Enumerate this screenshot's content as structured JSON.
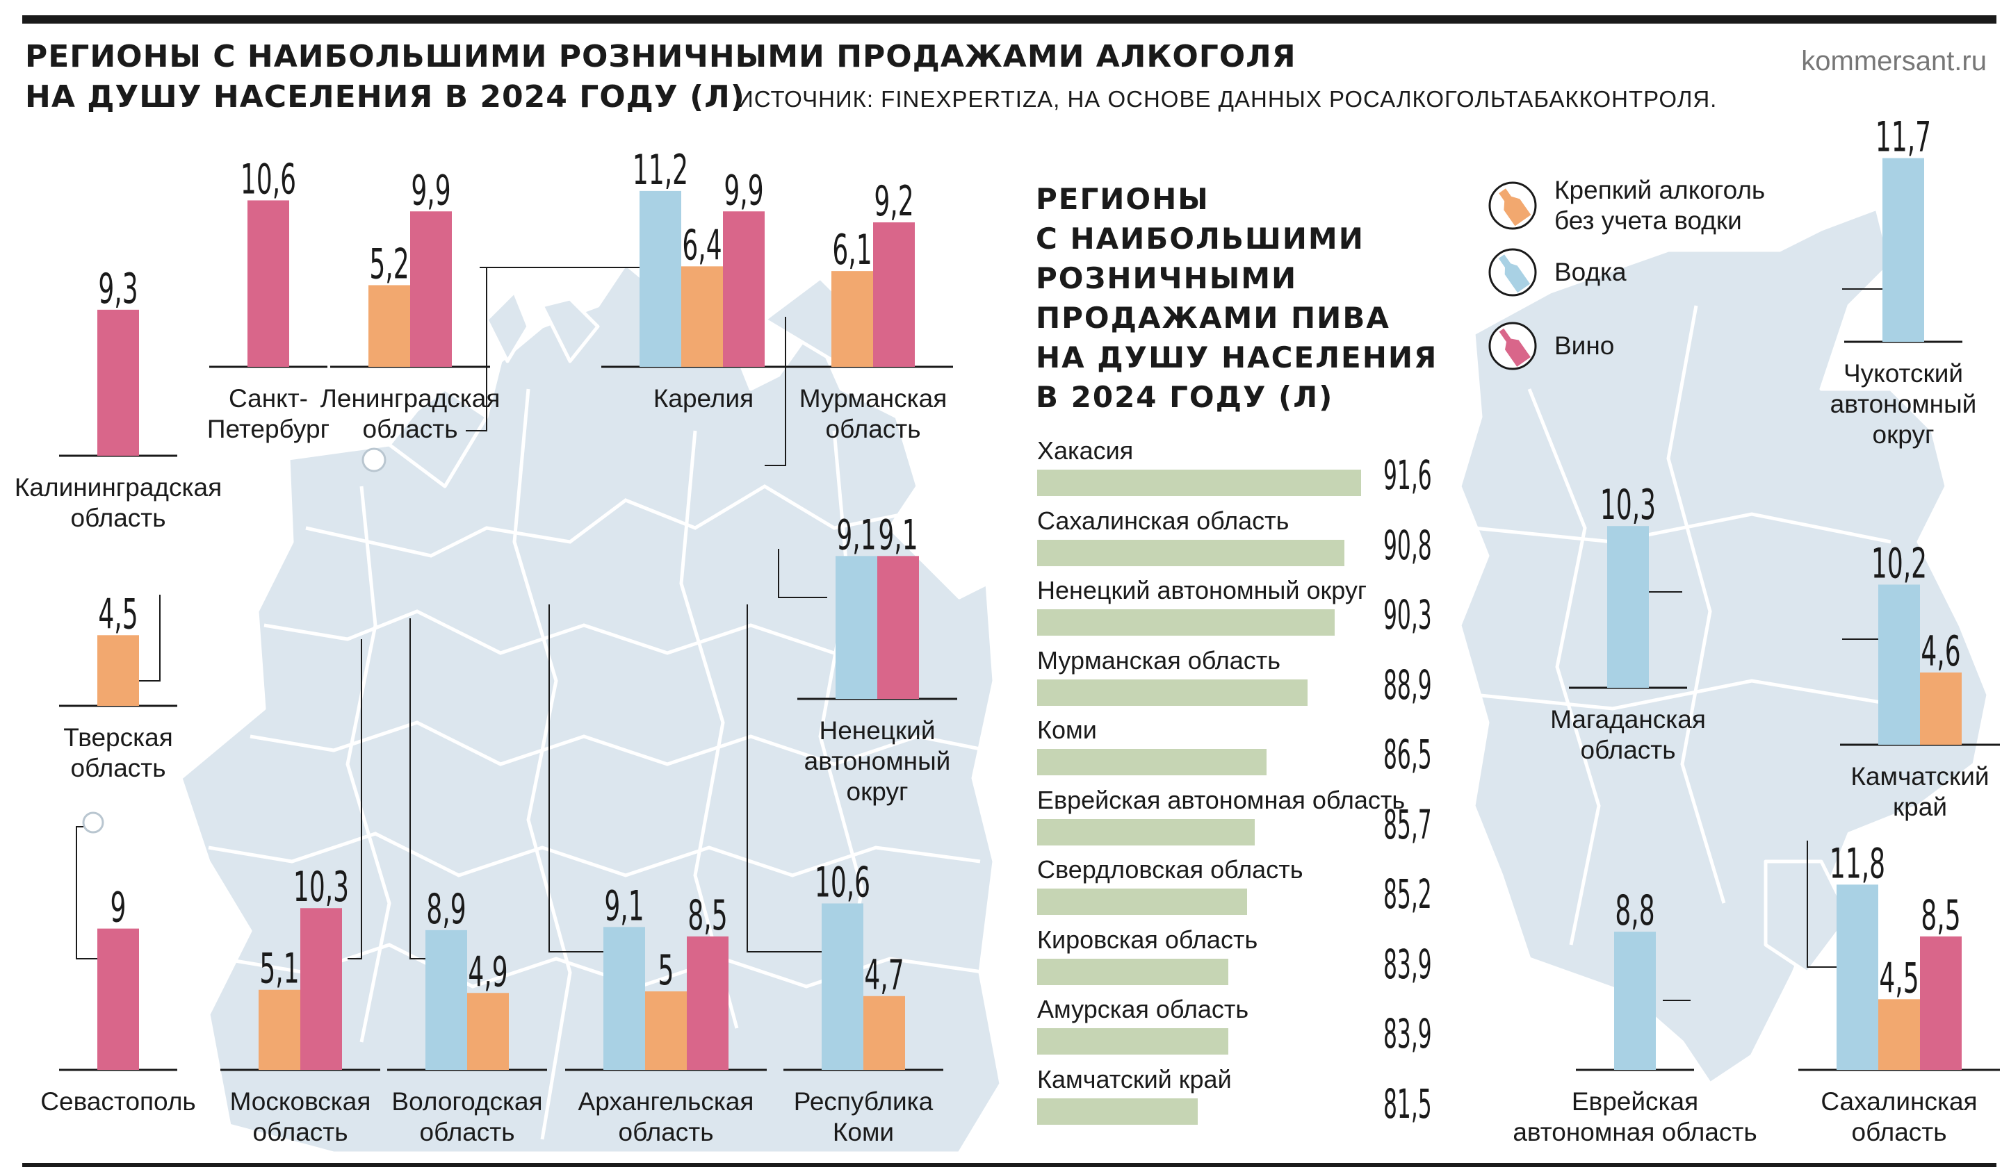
{
  "header": {
    "title_line1": "РЕГИОНЫ С НАИБОЛЬШИМИ РОЗНИЧНЫМИ ПРОДАЖАМИ АЛКОГОЛЯ",
    "title_line2": "НА ДУШУ НАСЕЛЕНИЯ В 2024 ГОДУ (Л)",
    "source": "ИСТОЧНИК: FINEXPERTIZA, НА ОСНОВЕ ДАННЫХ РОСАЛКОГОЛЬТАБАККОНТРОЛЯ.",
    "site": "kommersant.ru"
  },
  "colors": {
    "strong": "#f2a86f",
    "vodka": "#a9d1e4",
    "wine": "#d9668a",
    "beer_bar": "#c6d5b4",
    "map": "#dce6ee"
  },
  "legend": {
    "items": [
      {
        "label": "Крепкий алкоголь\nбез учета водки",
        "icon": "strong-bottle-icon",
        "color": "#f2a86f"
      },
      {
        "label": "Водка",
        "icon": "vodka-bottle-icon",
        "color": "#a9d1e4"
      },
      {
        "label": "Вино",
        "icon": "wine-bottle-icon",
        "color": "#d9668a"
      }
    ]
  },
  "chart_data": [
    {
      "type": "bar",
      "title": "РЕГИОНЫ С НАИБОЛЬШИМИ РОЗНИЧНЫМИ ПРОДАЖАМИ АЛКОГОЛЯ НА ДУШУ НАСЕЛЕНИЯ В 2024 ГОДУ (Л)",
      "series_names": [
        "Крепкий алкоголь без учета водки",
        "Водка",
        "Вино"
      ],
      "regions": [
        {
          "name": "Калининградская\nобласть",
          "bars": [
            {
              "kind": "wine",
              "value": 9.3,
              "label": "9,3"
            }
          ]
        },
        {
          "name": "Санкт-\nПетербург",
          "bars": [
            {
              "kind": "wine",
              "value": 10.6,
              "label": "10,6"
            }
          ]
        },
        {
          "name": "Ленинградская\nобласть",
          "bars": [
            {
              "kind": "strong",
              "value": 5.2,
              "label": "5,2"
            },
            {
              "kind": "wine",
              "value": 9.9,
              "label": "9,9"
            }
          ]
        },
        {
          "name": "Карелия",
          "bars": [
            {
              "kind": "vodka",
              "value": 11.2,
              "label": "11,2"
            },
            {
              "kind": "strong",
              "value": 6.4,
              "label": "6,4"
            },
            {
              "kind": "wine",
              "value": 9.9,
              "label": "9,9"
            }
          ]
        },
        {
          "name": "Мурманская\nобласть",
          "bars": [
            {
              "kind": "strong",
              "value": 6.1,
              "label": "6,1"
            },
            {
              "kind": "wine",
              "value": 9.2,
              "label": "9,2"
            }
          ]
        },
        {
          "name": "Тверская\nобласть",
          "bars": [
            {
              "kind": "strong",
              "value": 4.5,
              "label": "4,5"
            }
          ]
        },
        {
          "name": "Ненецкий\nавтономный\nокруг",
          "bars": [
            {
              "kind": "vodka",
              "value": 9.1,
              "label": "9,1"
            },
            {
              "kind": "wine",
              "value": 9.1,
              "label": "9,1"
            }
          ]
        },
        {
          "name": "Севастополь",
          "bars": [
            {
              "kind": "wine",
              "value": 9,
              "label": "9"
            }
          ]
        },
        {
          "name": "Московская\nобласть",
          "bars": [
            {
              "kind": "strong",
              "value": 5.1,
              "label": "5,1"
            },
            {
              "kind": "wine",
              "value": 10.3,
              "label": "10,3"
            }
          ]
        },
        {
          "name": "Вологодская\nобласть",
          "bars": [
            {
              "kind": "vodka",
              "value": 8.9,
              "label": "8,9"
            },
            {
              "kind": "strong",
              "value": 4.9,
              "label": "4,9"
            }
          ]
        },
        {
          "name": "Архангельская\nобласть",
          "bars": [
            {
              "kind": "vodka",
              "value": 9.1,
              "label": "9,1"
            },
            {
              "kind": "strong",
              "value": 5,
              "label": "5"
            },
            {
              "kind": "wine",
              "value": 8.5,
              "label": "8,5"
            }
          ]
        },
        {
          "name": "Республика\nКоми",
          "bars": [
            {
              "kind": "vodka",
              "value": 10.6,
              "label": "10,6"
            },
            {
              "kind": "strong",
              "value": 4.7,
              "label": "4,7"
            }
          ]
        },
        {
          "name": "Чукотский\nавтономный\nокруг",
          "bars": [
            {
              "kind": "vodka",
              "value": 11.7,
              "label": "11,7"
            }
          ]
        },
        {
          "name": "Магаданская\nобласть",
          "bars": [
            {
              "kind": "vodka",
              "value": 10.3,
              "label": "10,3"
            }
          ]
        },
        {
          "name": "Камчатский\nкрай",
          "bars": [
            {
              "kind": "vodka",
              "value": 10.2,
              "label": "10,2"
            },
            {
              "kind": "strong",
              "value": 4.6,
              "label": "4,6"
            }
          ]
        },
        {
          "name": "Еврейская\nавтономная область",
          "bars": [
            {
              "kind": "vodka",
              "value": 8.8,
              "label": "8,8"
            }
          ]
        },
        {
          "name": "Сахалинская\nобласть",
          "bars": [
            {
              "kind": "vodka",
              "value": 11.8,
              "label": "11,8"
            },
            {
              "kind": "strong",
              "value": 4.5,
              "label": "4,5"
            },
            {
              "kind": "wine",
              "value": 8.5,
              "label": "8,5"
            }
          ]
        }
      ]
    },
    {
      "type": "bar",
      "orientation": "horizontal",
      "title": "РЕГИОНЫ\nС НАИБОЛЬШИМИ\nРОЗНИЧНЫМИ\nПРОДАЖАМИ ПИВА\nНА ДУШУ НАСЕЛЕНИЯ\nВ 2024 ГОДУ (Л)",
      "categories": [
        "Хакасия",
        "Сахалинская область",
        "Ненецкий автономный округ",
        "Мурманская область",
        "Коми",
        "Еврейская автономная область",
        "Свердловская область",
        "Кировская область",
        "Амурская область",
        "Камчатский край"
      ],
      "values": [
        91.6,
        90.8,
        90.3,
        88.9,
        86.5,
        85.7,
        85.2,
        83.9,
        83.9,
        81.5
      ],
      "value_labels": [
        "91,6",
        "90,8",
        "90,3",
        "88,9",
        "86,5",
        "85,7",
        "85,2",
        "83,9",
        "83,9",
        "81,5"
      ]
    }
  ]
}
